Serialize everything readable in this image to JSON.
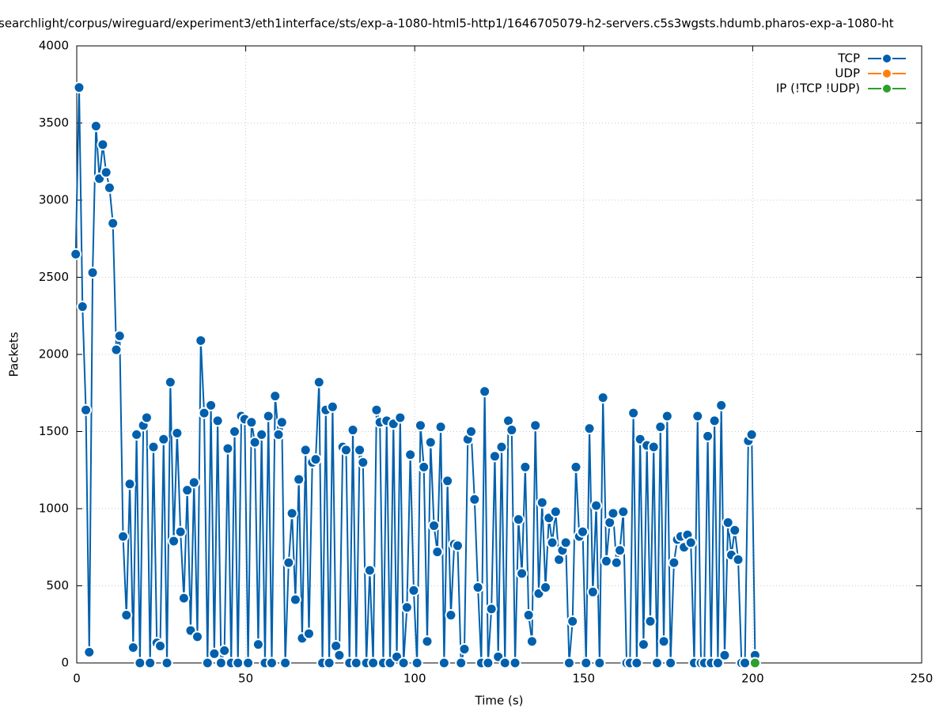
{
  "chart_data": {
    "type": "line",
    "title": "searchlight/corpus/wireguard/experiment3/eth1interface/sts/exp-a-1080-html5-http1/1646705079-h2-servers.c5s3wgsts.hdumb.pharos-exp-a-1080-ht",
    "x_label": "Time (s)",
    "y_label": "Packets",
    "xlim": [
      0,
      250
    ],
    "xticks": [
      0,
      50,
      100,
      150,
      200,
      250
    ],
    "ylim": [
      0,
      4000
    ],
    "yticks": [
      0,
      500,
      1000,
      1500,
      2000,
      2500,
      3000,
      3500,
      4000
    ],
    "grid": true,
    "legend": "top-right",
    "series": [
      {
        "name": "TCP",
        "color": "#0060ad",
        "x": [
          -0.3,
          0.7,
          1.7,
          2.7,
          3.7,
          4.7,
          5.7,
          6.7,
          7.7,
          8.7,
          9.7,
          10.7,
          11.7,
          12.7,
          13.7,
          14.7,
          15.7,
          16.7,
          17.7,
          18.7,
          19.7,
          20.7,
          21.7,
          22.7,
          23.7,
          24.7,
          25.7,
          26.7,
          27.7,
          28.7,
          29.7,
          30.7,
          31.7,
          32.7,
          33.7,
          34.7,
          35.7,
          36.7,
          37.7,
          38.7,
          39.7,
          40.7,
          41.7,
          42.7,
          43.7,
          44.7,
          45.7,
          46.7,
          47.7,
          48.7,
          49.7,
          50.7,
          51.7,
          52.7,
          53.7,
          54.7,
          55.7,
          56.7,
          57.7,
          58.7,
          59.7,
          60.7,
          61.7,
          62.7,
          63.7,
          64.7,
          65.7,
          66.7,
          67.7,
          68.7,
          69.7,
          70.7,
          71.7,
          72.7,
          73.7,
          74.7,
          75.7,
          76.7,
          77.7,
          78.7,
          79.7,
          80.7,
          81.7,
          82.7,
          83.7,
          84.7,
          85.7,
          86.7,
          87.7,
          88.7,
          89.7,
          90.7,
          91.7,
          92.7,
          93.7,
          94.7,
          95.7,
          96.7,
          97.7,
          98.7,
          99.7,
          100.7,
          101.7,
          102.7,
          103.7,
          104.7,
          105.7,
          106.7,
          107.7,
          108.7,
          109.7,
          110.7,
          111.7,
          112.7,
          113.7,
          114.7,
          115.7,
          116.7,
          117.7,
          118.7,
          119.7,
          120.7,
          121.7,
          122.7,
          123.7,
          124.7,
          125.7,
          126.7,
          127.7,
          128.7,
          129.7,
          130.7,
          131.7,
          132.7,
          133.7,
          134.7,
          135.7,
          136.7,
          137.7,
          138.7,
          139.7,
          140.7,
          141.7,
          142.7,
          143.7,
          144.7,
          145.7,
          146.7,
          147.7,
          148.7,
          149.7,
          150.7,
          151.7,
          152.7,
          153.7,
          154.7,
          155.7,
          156.7,
          157.7,
          158.7,
          159.7,
          160.7,
          161.7,
          162.7,
          163.7,
          164.7,
          165.7,
          166.7,
          167.7,
          168.7,
          169.7,
          170.7,
          171.7,
          172.7,
          173.7,
          174.7,
          175.7,
          176.7,
          177.7,
          178.7,
          179.7,
          180.7,
          181.7,
          182.7,
          183.7,
          184.7,
          185.7,
          186.7,
          187.7,
          188.7,
          189.7,
          190.7,
          191.7,
          192.7,
          193.7,
          194.7,
          195.7,
          196.7,
          197.7,
          198.7,
          199.7,
          200.7
        ],
        "values": [
          2650,
          3730,
          2310,
          1640,
          70,
          2530,
          3480,
          3140,
          3360,
          3180,
          3080,
          2850,
          2030,
          2120,
          820,
          310,
          1160,
          100,
          1480,
          0,
          1540,
          1590,
          0,
          1400,
          130,
          110,
          1450,
          0,
          1820,
          790,
          1490,
          850,
          420,
          1120,
          210,
          1170,
          170,
          2090,
          1620,
          0,
          1670,
          60,
          1570,
          0,
          80,
          1390,
          0,
          1500,
          0,
          1600,
          1580,
          0,
          1560,
          1430,
          120,
          1480,
          0,
          1600,
          0,
          1730,
          1480,
          1560,
          0,
          650,
          970,
          410,
          1190,
          160,
          1380,
          190,
          1300,
          1320,
          1820,
          0,
          1640,
          0,
          1660,
          110,
          50,
          1400,
          1380,
          0,
          1510,
          0,
          1380,
          1300,
          0,
          600,
          0,
          1640,
          1560,
          0,
          1570,
          0,
          1550,
          40,
          1590,
          0,
          360,
          1350,
          470,
          0,
          1540,
          1270,
          140,
          1430,
          890,
          720,
          1530,
          0,
          1180,
          310,
          770,
          760,
          0,
          90,
          1450,
          1500,
          1060,
          490,
          0,
          1760,
          0,
          350,
          1340,
          40,
          1400,
          0,
          1570,
          1510,
          0,
          930,
          580,
          1270,
          310,
          140,
          1540,
          450,
          1040,
          490,
          940,
          780,
          980,
          670,
          730,
          780,
          0,
          270,
          1270,
          820,
          850,
          0,
          1520,
          460,
          1020,
          0,
          1720,
          660,
          910,
          970,
          650,
          730,
          980,
          0,
          0,
          1620,
          0,
          1450,
          120,
          1410,
          270,
          1400,
          0,
          1530,
          140,
          1600,
          0,
          650,
          800,
          820,
          750,
          830,
          780,
          0,
          1600,
          0,
          0,
          1470,
          0,
          1570,
          0,
          1670,
          50,
          910,
          700,
          860,
          670,
          0,
          0,
          1440,
          1480,
          50
        ]
      },
      {
        "name": "UDP",
        "color": "#ff7f0e",
        "x": [],
        "values": []
      },
      {
        "name": "IP (!TCP  !UDP)",
        "color": "#2ca02c",
        "x": [
          200.7
        ],
        "values": [
          0
        ]
      }
    ]
  }
}
